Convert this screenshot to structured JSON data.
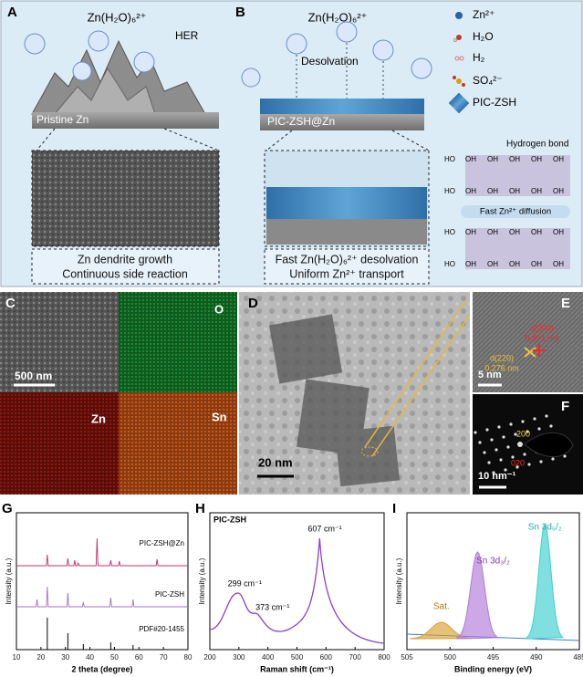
{
  "panel_a": {
    "label": "A",
    "ion": "Zn(H₂O)₆²⁺",
    "her": "HER",
    "substrate": "Pristine Zn",
    "captions": [
      "Zn dendrite growth",
      "Continuous side reaction"
    ]
  },
  "panel_b": {
    "label": "B",
    "ion": "Zn(H₂O)₆²⁺",
    "desolvation": "Desolvation",
    "substrate": "PIC-ZSH@Zn",
    "captions": [
      "Fast Zn(H₂O)₆²⁺ desolvation",
      "Uniform Zn²⁺ transport"
    ]
  },
  "legend": [
    "Zn²⁺",
    "H₂O",
    "H₂",
    "SO₄²⁻",
    "PIC-ZSH"
  ],
  "lattice": {
    "hbond": "Hydrogen bond",
    "diffusion": "Fast Zn²⁺ diffusion",
    "oh": "OH",
    "ho": "HO"
  },
  "panel_c": {
    "label": "C",
    "scale": "500 nm",
    "maps": [
      "O",
      "Zn",
      "Sn"
    ]
  },
  "panel_d": {
    "label": "D",
    "scale": "20 nm"
  },
  "panel_e": {
    "label": "E",
    "d200": "d(200)",
    "d200_val": "0.391 nm",
    "d220": "d(220)",
    "d220_val": "0.276 nm",
    "scale": "5 nm"
  },
  "panel_f": {
    "label": "F",
    "spot1": "200",
    "spot2": "020",
    "scale": "10 nm⁻¹"
  },
  "panel_g": {
    "label": "G",
    "ylabel": "Intensity (a.u.)",
    "xlabel": "2 theta (degree)",
    "traces": [
      "PIC-ZSH@Zn",
      "PIC-ZSH",
      "PDF#20-1455"
    ],
    "xticks": [
      10,
      20,
      30,
      40,
      50,
      60,
      70,
      80
    ]
  },
  "panel_h": {
    "label": "H",
    "title": "PIC-ZSH",
    "ylabel": "Intensity (a.u.)",
    "xlabel": "Raman shift (cm⁻¹)",
    "peaks": [
      "299 cm⁻¹",
      "373 cm⁻¹",
      "607 cm⁻¹"
    ],
    "xticks": [
      200,
      300,
      400,
      500,
      600,
      700,
      800
    ]
  },
  "panel_i": {
    "label": "I",
    "ylabel": "Intensity (a.u.)",
    "xlabel": "Binding energy (eV)",
    "peaks": [
      "Sn 3d₅/₂",
      "Sn 3d₃/₂",
      "Sat."
    ],
    "xticks": [
      505,
      500,
      495,
      490,
      485
    ]
  }
}
